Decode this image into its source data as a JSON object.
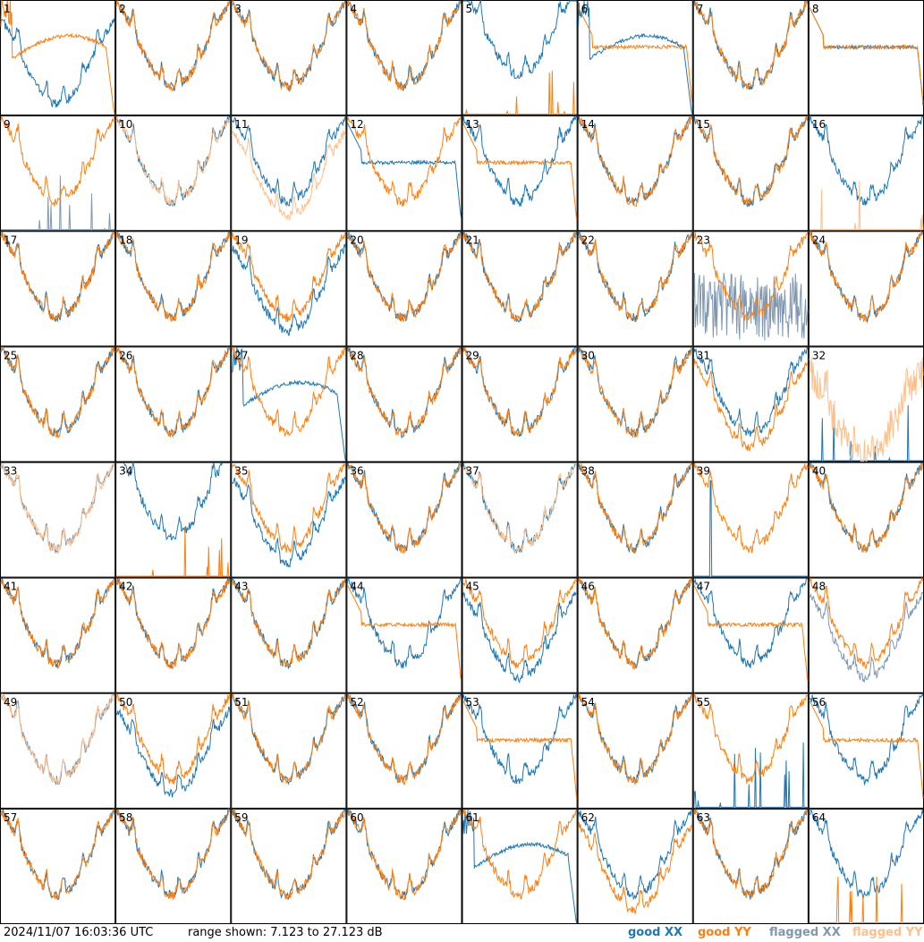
{
  "chart_data": {
    "type": "line",
    "description_panels": 64,
    "panel_labels": [
      "1",
      "2",
      "3",
      "4",
      "5",
      "6",
      "7",
      "8",
      "9",
      "10",
      "11",
      "12",
      "13",
      "14",
      "15",
      "16",
      "17",
      "18",
      "19",
      "20",
      "21",
      "22",
      "23",
      "24",
      "25",
      "26",
      "27",
      "28",
      "29",
      "30",
      "31",
      "32",
      "33",
      "34",
      "35",
      "36",
      "37",
      "38",
      "39",
      "40",
      "41",
      "42",
      "43",
      "44",
      "45",
      "46",
      "47",
      "48",
      "49",
      "50",
      "51",
      "52",
      "53",
      "54",
      "55",
      "56",
      "57",
      "58",
      "59",
      "60",
      "61",
      "62",
      "63",
      "64"
    ],
    "ylim": [
      7.123,
      27.123
    ],
    "y_unit": "dB",
    "series_colors": {
      "good_xx": "#1f77b4",
      "good_yy": "#ff7f0e",
      "flagged_xx": "#7f97b0",
      "flagged_yy": "#ffbf8a"
    },
    "panels": [
      {
        "xx": "dip",
        "yy": "decay"
      },
      {
        "xx": "normal",
        "yy": "normal"
      },
      {
        "xx": "normal",
        "yy": "normal"
      },
      {
        "xx": "normal",
        "yy": "normal"
      },
      {
        "xx": "high",
        "yy": "low"
      },
      {
        "xx": "decay",
        "yy": "flat"
      },
      {
        "xx": "normal",
        "yy": "normal"
      },
      {
        "xx": "flat",
        "yy": "flat"
      },
      {
        "xx": "spikes_flagged",
        "yy": "normal"
      },
      {
        "xx": "normal",
        "yy": "normal_flagged"
      },
      {
        "xx": "normal",
        "yy": "lower_flagged"
      },
      {
        "xx": "flat",
        "yy": "normal"
      },
      {
        "xx": "normal",
        "yy": "flat"
      },
      {
        "xx": "normal",
        "yy": "normal"
      },
      {
        "xx": "normal",
        "yy": "normal"
      },
      {
        "xx": "normal",
        "yy": "low_flagged"
      },
      {
        "xx": "normal",
        "yy": "normal"
      },
      {
        "xx": "normal",
        "yy": "normal"
      },
      {
        "xx": "lower",
        "yy": "normal"
      },
      {
        "xx": "normal",
        "yy": "normal"
      },
      {
        "xx": "normal",
        "yy": "normal"
      },
      {
        "xx": "normal",
        "yy": "normal"
      },
      {
        "xx": "noise_flagged",
        "yy": "normal"
      },
      {
        "xx": "normal",
        "yy": "normal"
      },
      {
        "xx": "normal",
        "yy": "normal"
      },
      {
        "xx": "normal",
        "yy": "normal"
      },
      {
        "xx": "decay",
        "yy": "normal"
      },
      {
        "xx": "normal",
        "yy": "normal"
      },
      {
        "xx": "normal",
        "yy": "normal"
      },
      {
        "xx": "normal",
        "yy": "normal"
      },
      {
        "xx": "normal",
        "yy": "lower"
      },
      {
        "xx": "low",
        "yy": "noisy_flagged"
      },
      {
        "xx": "normal_flagged",
        "yy": "normal_flagged"
      },
      {
        "xx": "high",
        "yy": "spikes"
      },
      {
        "xx": "lower",
        "yy": "normal"
      },
      {
        "xx": "normal",
        "yy": "normal"
      },
      {
        "xx": "normal",
        "yy": "normal_flagged"
      },
      {
        "xx": "normal",
        "yy": "normal"
      },
      {
        "xx": "spike",
        "yy": "normal"
      },
      {
        "xx": "normal",
        "yy": "normal"
      },
      {
        "xx": "normal",
        "yy": "normal"
      },
      {
        "xx": "normal",
        "yy": "normal"
      },
      {
        "xx": "normal",
        "yy": "normal"
      },
      {
        "xx": "normal",
        "yy": "flat"
      },
      {
        "xx": "lower",
        "yy": "normal"
      },
      {
        "xx": "normal",
        "yy": "normal"
      },
      {
        "xx": "normal",
        "yy": "flat"
      },
      {
        "xx": "lower_flagged",
        "yy": "normal"
      },
      {
        "xx": "normal_flagged",
        "yy": "normal_flagged"
      },
      {
        "xx": "lower",
        "yy": "normal"
      },
      {
        "xx": "normal",
        "yy": "normal"
      },
      {
        "xx": "normal",
        "yy": "normal"
      },
      {
        "xx": "normal",
        "yy": "flat"
      },
      {
        "xx": "normal",
        "yy": "normal"
      },
      {
        "xx": "spikes",
        "yy": "normal"
      },
      {
        "xx": "normal",
        "yy": "flat"
      },
      {
        "xx": "normal",
        "yy": "normal"
      },
      {
        "xx": "normal",
        "yy": "normal"
      },
      {
        "xx": "normal",
        "yy": "normal"
      },
      {
        "xx": "normal",
        "yy": "normal"
      },
      {
        "xx": "decay",
        "yy": "normal"
      },
      {
        "xx": "normal",
        "yy": "lower"
      },
      {
        "xx": "normal",
        "yy": "normal"
      },
      {
        "xx": "normal",
        "yy": "low"
      }
    ]
  },
  "footer": {
    "timestamp": "2024/11/07 16:03:36 UTC",
    "range": "range shown: 7.123 to 27.123 dB",
    "legend_good_xx": "good XX",
    "legend_good_yy": "good YY",
    "legend_flagged_xx": "flagged XX",
    "legend_flagged_yy": "flagged YY"
  }
}
